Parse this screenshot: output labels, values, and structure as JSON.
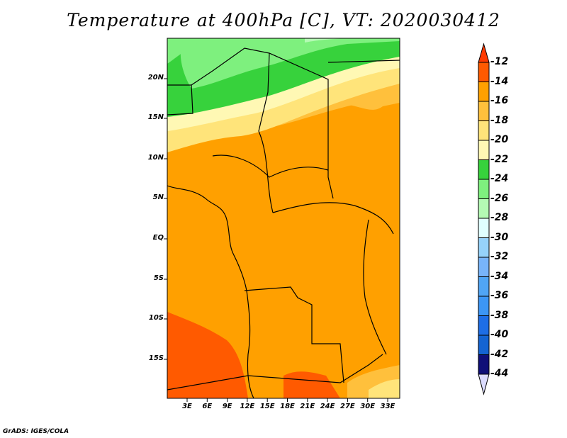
{
  "title": "Temperature at 400hPa [C], VT: 2020030412",
  "y_ticks": [
    "20N",
    "15N",
    "10N",
    "5N",
    "EQ",
    "5S",
    "10S",
    "15S"
  ],
  "x_ticks": [
    "3E",
    "6E",
    "9E",
    "12E",
    "15E",
    "18E",
    "21E",
    "24E",
    "27E",
    "30E",
    "33E"
  ],
  "colorbar": {
    "labels": [
      "-12",
      "-14",
      "-16",
      "-18",
      "-20",
      "-22",
      "-24",
      "-26",
      "-28",
      "-30",
      "-32",
      "-34",
      "-36",
      "-38",
      "-40",
      "-42",
      "-44"
    ],
    "colors": [
      "#ff5a00",
      "#ffa000",
      "#ffc03c",
      "#ffe47a",
      "#fff8b4",
      "#37d23c",
      "#7ef07e",
      "#b4fab4",
      "#e0ffff",
      "#96d2fa",
      "#78b4fa",
      "#50a5f5",
      "#3c96f5",
      "#1e6ee6",
      "#1464d2",
      "#0f0f78"
    ],
    "above_color": "#ff3a00",
    "below_color": "#dcdcff"
  },
  "credit": "GrADS: IGES/COLA"
}
